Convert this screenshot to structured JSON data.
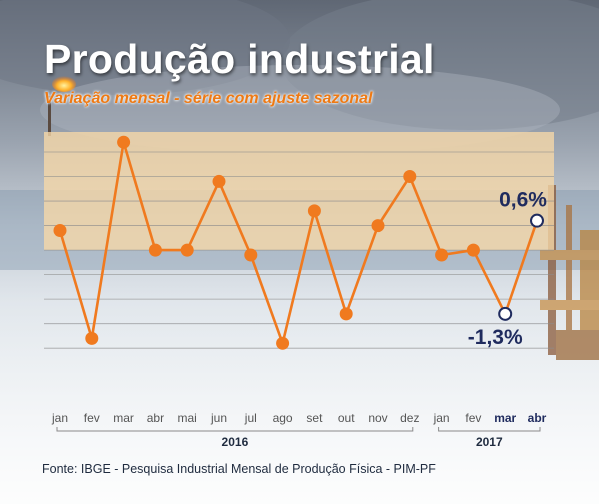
{
  "header": {
    "title": "Produção industrial",
    "subtitle": "Variação mensal - série com ajuste sazonal"
  },
  "footer": {
    "source": "Fonte: IBGE - Pesquisa Industrial Mensal de Produção Física - PIM-PF"
  },
  "colors": {
    "line": "#f07a1f",
    "marker": "#f07a1f",
    "highlight_marker_fill": "#ffffff",
    "highlight_marker_stroke": "#1f2b5e",
    "highlight_label": "#1f2b5e",
    "positive_band": "#f7d9a8",
    "gridline": "#8d8d8d",
    "tick_label": "#555555",
    "tick_label_highlight": "#1f2b5e"
  },
  "chart_data": {
    "type": "line",
    "title": "Produção industrial",
    "subtitle": "Variação mensal - série com ajuste sazonal",
    "xlabel": "",
    "ylabel": "",
    "unit": "%",
    "grid": true,
    "y_ticks_shown": false,
    "ylim": [
      -2.2,
      2.0
    ],
    "categories": [
      "jan",
      "fev",
      "mar",
      "abr",
      "mai",
      "jun",
      "jul",
      "ago",
      "set",
      "out",
      "nov",
      "dez",
      "jan",
      "fev",
      "mar",
      "abr"
    ],
    "year_groups": [
      {
        "label": "2016",
        "start": 0,
        "end": 11
      },
      {
        "label": "2017",
        "start": 12,
        "end": 15
      }
    ],
    "highlighted_categories": [
      14,
      15
    ],
    "series": [
      {
        "values": [
          0.4,
          -1.8,
          2.2,
          0.0,
          0.0,
          1.4,
          -0.1,
          -1.9,
          0.8,
          -1.3,
          0.5,
          1.5,
          -0.1,
          0.0,
          -1.3,
          0.6
        ],
        "point_labels": [
          {
            "index": 14,
            "text": "-1,3%"
          },
          {
            "index": 15,
            "text": "0,6%"
          }
        ]
      }
    ]
  }
}
